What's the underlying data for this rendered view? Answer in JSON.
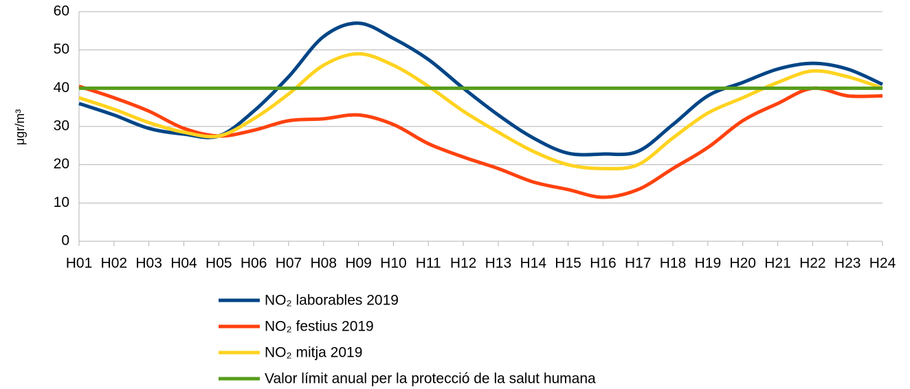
{
  "chart_data": {
    "type": "line",
    "y_label": "μgr/m³",
    "categories": [
      "H01",
      "H02",
      "H03",
      "H04",
      "H05",
      "H06",
      "H07",
      "H08",
      "H09",
      "H10",
      "H11",
      "H12",
      "H13",
      "H14",
      "H15",
      "H16",
      "H17",
      "H18",
      "H19",
      "H20",
      "H21",
      "H22",
      "H23",
      "H24"
    ],
    "series": [
      {
        "name": "NO₂  laborables 2019",
        "color": "#004586",
        "values": [
          36,
          33,
          29.5,
          28,
          27.5,
          34,
          43,
          53.5,
          57,
          53,
          47.5,
          40,
          33,
          27,
          23,
          22.8,
          23.5,
          30.5,
          38,
          41.5,
          45,
          46.5,
          45,
          41
        ]
      },
      {
        "name": "NO₂  festius 2019",
        "color": "#ff420e",
        "values": [
          40.5,
          37.5,
          34,
          29.5,
          27.5,
          29,
          31.5,
          32,
          33,
          30.5,
          25.5,
          22,
          19,
          15.5,
          13.5,
          11.5,
          13.5,
          19,
          24.5,
          31.5,
          36,
          40,
          38,
          38
        ]
      },
      {
        "name": "NO₂  mitja 2019",
        "color": "#ffd320",
        "values": [
          37.5,
          34.5,
          31,
          28.5,
          27.5,
          32,
          38.5,
          46,
          49,
          46,
          40.5,
          34,
          28.5,
          23.5,
          20,
          19,
          20,
          27,
          33.5,
          37.5,
          41.5,
          44.5,
          43,
          40
        ]
      },
      {
        "name": "Valor límit anual per la protecció de la salut humana",
        "color": "#579d1c",
        "values": [
          40,
          40,
          40,
          40,
          40,
          40,
          40,
          40,
          40,
          40,
          40,
          40,
          40,
          40,
          40,
          40,
          40,
          40,
          40,
          40,
          40,
          40,
          40,
          40
        ]
      }
    ],
    "ylim": [
      0,
      60
    ],
    "yticks": [
      0,
      10,
      20,
      30,
      40,
      50,
      60
    ],
    "grid": true,
    "legend": "bottom"
  }
}
